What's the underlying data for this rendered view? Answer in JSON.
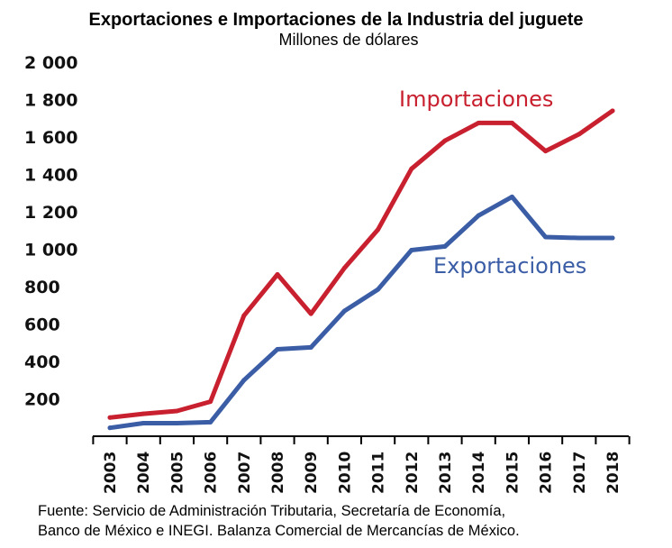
{
  "chart_data": {
    "type": "line",
    "title": "Exportaciones e Importaciones de la Industria del juguete",
    "subtitle": "Millones de dólares",
    "categories": [
      "2003",
      "2004",
      "2005",
      "2006",
      "2007",
      "2008",
      "2009",
      "2010",
      "2011",
      "2012",
      "2013",
      "2014",
      "2015",
      "2016",
      "2017",
      "2018"
    ],
    "series": [
      {
        "name": "Importaciones",
        "color": "#c8202f",
        "values": [
          100,
          120,
          135,
          185,
          645,
          865,
          655,
          900,
          1105,
          1430,
          1580,
          1675,
          1675,
          1525,
          1615,
          1740
        ]
      },
      {
        "name": "Exportaciones",
        "color": "#3a5da6",
        "values": [
          45,
          70,
          70,
          75,
          300,
          465,
          475,
          670,
          785,
          995,
          1015,
          1180,
          1280,
          1065,
          1060,
          1060
        ]
      }
    ],
    "y_tick_labels": [
      "200",
      "400",
      "600",
      "800",
      "1 000",
      "1 200",
      "1 400",
      "1 600",
      "1 800",
      "2 000"
    ],
    "y_tick_values": [
      200,
      400,
      600,
      800,
      1000,
      1200,
      1400,
      1600,
      1800,
      2000
    ],
    "ylim": [
      0,
      2000
    ],
    "grid": false,
    "legend": "inline-labels",
    "source": [
      "Fuente: Servicio de Administración Tributaria, Secretaría de Economía,",
      "Banco de México e INEGI. Balanza Comercial de Mercancías de México."
    ]
  }
}
